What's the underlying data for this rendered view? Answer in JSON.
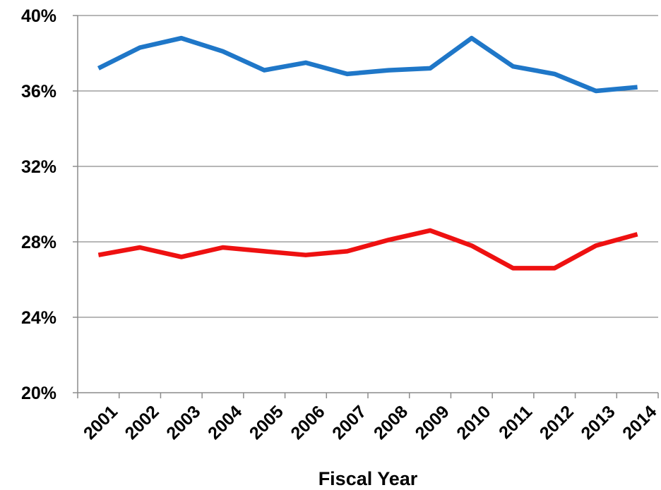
{
  "chart_data": {
    "type": "line",
    "title": "",
    "xlabel": "Fiscal Year",
    "ylabel": "",
    "categories": [
      "2001",
      "2002",
      "2003",
      "2004",
      "2005",
      "2006",
      "2007",
      "2008",
      "2009",
      "2010",
      "2011",
      "2012",
      "2013",
      "2014"
    ],
    "series": [
      {
        "color": "#1f77c8",
        "values": [
          37.2,
          38.3,
          38.8,
          38.1,
          37.1,
          37.5,
          36.9,
          37.1,
          37.2,
          38.8,
          37.3,
          36.9,
          36.0,
          36.2
        ]
      },
      {
        "color": "#ee1111",
        "values": [
          27.3,
          27.7,
          27.2,
          27.7,
          27.5,
          27.3,
          27.5,
          28.1,
          28.6,
          27.8,
          26.6,
          26.6,
          27.8,
          28.4
        ]
      }
    ],
    "ylim": [
      20,
      40
    ],
    "y_ticks": [
      20,
      24,
      28,
      32,
      36,
      40
    ],
    "y_tick_labels": [
      "20%",
      "24%",
      "28%",
      "32%",
      "36%",
      "40%"
    ],
    "grid": true,
    "legend": "none"
  }
}
